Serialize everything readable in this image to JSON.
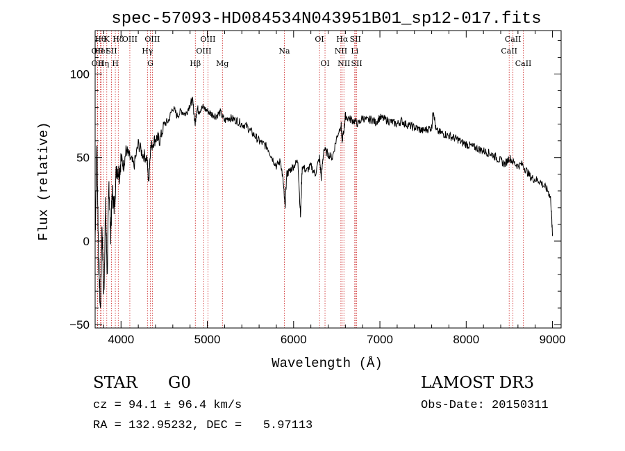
{
  "chart_data": {
    "type": "line",
    "title": "spec-57093-HD084534N043951B01_sp12-017.fits",
    "xlabel": "Wavelength (Å)",
    "ylabel": "Flux (relative)",
    "xlim": [
      3700,
      9100
    ],
    "ylim": [
      -52,
      126
    ],
    "xticks": [
      4000,
      5000,
      6000,
      7000,
      8000,
      9000
    ],
    "yticks": [
      -50,
      0,
      50,
      100
    ],
    "grid": false,
    "series": [
      {
        "x": [
          3700,
          3720,
          3740,
          3760,
          3780,
          3800,
          3820,
          3840,
          3860,
          3880,
          3900,
          3920,
          3950,
          3980,
          4000,
          4030,
          4060,
          4100,
          4150,
          4200,
          4250,
          4300,
          4320,
          4340,
          4380,
          4420,
          4450,
          4500,
          4550,
          4600,
          4650,
          4700,
          4750,
          4800,
          4830,
          4860,
          4880,
          4900,
          4950,
          5000,
          5050,
          5100,
          5150,
          5200,
          5250,
          5300,
          5350,
          5400,
          5450,
          5500,
          5550,
          5600,
          5650,
          5700,
          5750,
          5800,
          5850,
          5880,
          5900,
          5920,
          5950,
          6000,
          6050,
          6080,
          6100,
          6150,
          6200,
          6250,
          6300,
          6320,
          6350,
          6400,
          6450,
          6500,
          6550,
          6560,
          6580,
          6600,
          6650,
          6700,
          6750,
          6800,
          6850,
          6900,
          6950,
          7000,
          7050,
          7100,
          7150,
          7200,
          7250,
          7300,
          7350,
          7400,
          7450,
          7500,
          7550,
          7600,
          7620,
          7650,
          7700,
          7750,
          7800,
          7850,
          7900,
          7950,
          8000,
          8050,
          8100,
          8150,
          8200,
          8250,
          8300,
          8350,
          8400,
          8450,
          8500,
          8550,
          8600,
          8650,
          8700,
          8750,
          8800,
          8850,
          8900,
          8950,
          8980,
          9000
        ],
        "values": [
          0,
          60,
          -10,
          -42,
          10,
          -35,
          20,
          -20,
          35,
          5,
          30,
          20,
          45,
          40,
          50,
          45,
          55,
          50,
          45,
          58,
          52,
          50,
          35,
          55,
          60,
          62,
          60,
          70,
          72,
          80,
          75,
          78,
          76,
          82,
          84,
          70,
          80,
          78,
          80,
          78,
          76,
          75,
          77,
          72,
          74,
          73,
          72,
          70,
          69,
          66,
          63,
          60,
          58,
          56,
          50,
          45,
          48,
          35,
          20,
          40,
          42,
          45,
          48,
          15,
          45,
          42,
          45,
          40,
          50,
          38,
          55,
          52,
          50,
          62,
          70,
          60,
          65,
          75,
          73,
          72,
          70,
          74,
          72,
          73,
          71,
          74,
          73,
          72,
          71,
          70,
          72,
          70,
          69,
          68,
          67,
          66,
          67,
          68,
          79,
          66,
          65,
          64,
          63,
          62,
          61,
          59,
          58,
          57,
          56,
          55,
          54,
          53,
          52,
          50,
          48,
          46,
          50,
          47,
          45,
          46,
          42,
          38,
          37,
          36,
          33,
          30,
          25,
          3
        ],
        "color": "#000000"
      }
    ],
    "line_markers": [
      {
        "wl": 3727,
        "label": "OII",
        "row": 2
      },
      {
        "wl": 3728,
        "label": "OII",
        "row": 3
      },
      {
        "wl": 3760,
        "label": "Hθ",
        "row": 1
      },
      {
        "wl": 3771,
        "label": "HeI",
        "row": 2
      },
      {
        "wl": 3797,
        "label": "Hη",
        "row": 3
      },
      {
        "wl": 3835,
        "label": "K",
        "row": 1
      },
      {
        "wl": 3889,
        "label": "SII",
        "row": 2
      },
      {
        "wl": 3934,
        "label": "H",
        "row": 3
      },
      {
        "wl": 3968,
        "label": "Hδ",
        "row": 1
      },
      {
        "wl": 4102,
        "label": "OIII",
        "row": 1
      },
      {
        "wl": 4306,
        "label": "Hγ",
        "row": 2
      },
      {
        "wl": 4340,
        "label": "G",
        "row": 3
      },
      {
        "wl": 4363,
        "label": "OIII",
        "row": 1
      },
      {
        "wl": 4861,
        "label": "Hβ",
        "row": 3
      },
      {
        "wl": 4959,
        "label": "OIII",
        "row": 2
      },
      {
        "wl": 5007,
        "label": "OIII",
        "row": 1
      },
      {
        "wl": 5175,
        "label": "Mg",
        "row": 3
      },
      {
        "wl": 5893,
        "label": "Na",
        "row": 2
      },
      {
        "wl": 6300,
        "label": "OI",
        "row": 1
      },
      {
        "wl": 6364,
        "label": "OI",
        "row": 3
      },
      {
        "wl": 6548,
        "label": "NII",
        "row": 2
      },
      {
        "wl": 6563,
        "label": "Hα",
        "row": 1
      },
      {
        "wl": 6583,
        "label": "NII",
        "row": 3
      },
      {
        "wl": 6708,
        "label": "Li",
        "row": 2
      },
      {
        "wl": 6716,
        "label": "SII",
        "row": 1
      },
      {
        "wl": 6731,
        "label": "SII",
        "row": 3
      },
      {
        "wl": 8498,
        "label": "CaII",
        "row": 2
      },
      {
        "wl": 8542,
        "label": "CaII",
        "row": 1
      },
      {
        "wl": 8662,
        "label": "CaII",
        "row": 3
      }
    ]
  },
  "info": {
    "class_label": "STAR",
    "subclass_label": "G0",
    "survey_label": "LAMOST DR3",
    "cz_text": "cz = 94.1 ± 96.4 km/s",
    "obs_date_text": "Obs-Date: 20150311",
    "coords_text": "RA = 132.95232, DEC =   5.97113"
  },
  "colors": {
    "marker_line": "#cc2222",
    "spectrum": "#000000",
    "axes": "#000000"
  }
}
